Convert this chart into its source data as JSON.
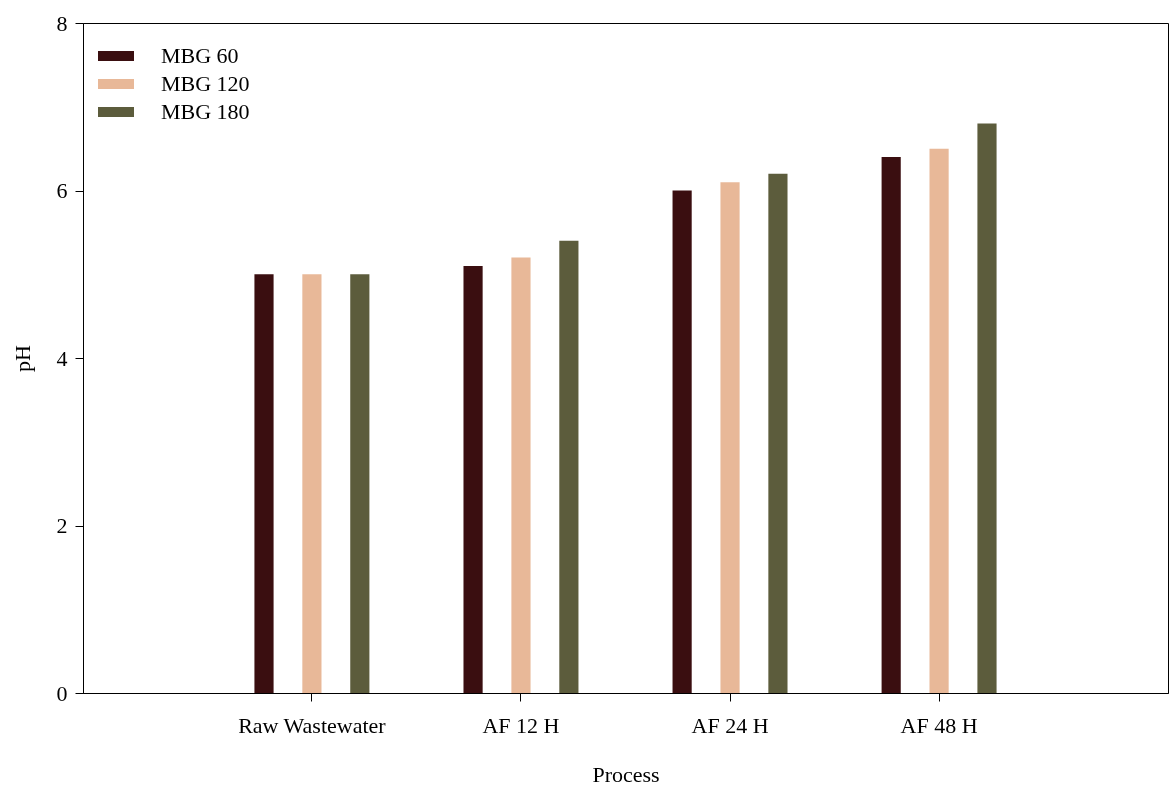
{
  "chart_data": {
    "type": "bar",
    "xlabel": "Process",
    "ylabel": "pH",
    "categories": [
      "Raw Wastewater",
      "AF 12 H",
      "AF 24 H",
      "AF 48 H"
    ],
    "series": [
      {
        "name": "MBG 60",
        "color": "#3a0e10",
        "values": [
          5.0,
          5.1,
          6.0,
          6.4
        ]
      },
      {
        "name": "MBG 120",
        "color": "#e8b898",
        "values": [
          5.0,
          5.2,
          6.1,
          6.5
        ]
      },
      {
        "name": "MBG 180",
        "color": "#5c5c3c",
        "values": [
          5.0,
          5.4,
          6.2,
          6.8
        ]
      }
    ],
    "ylim": [
      0,
      8
    ],
    "yticks": [
      0,
      2,
      4,
      6,
      8
    ],
    "legend": "top left"
  }
}
